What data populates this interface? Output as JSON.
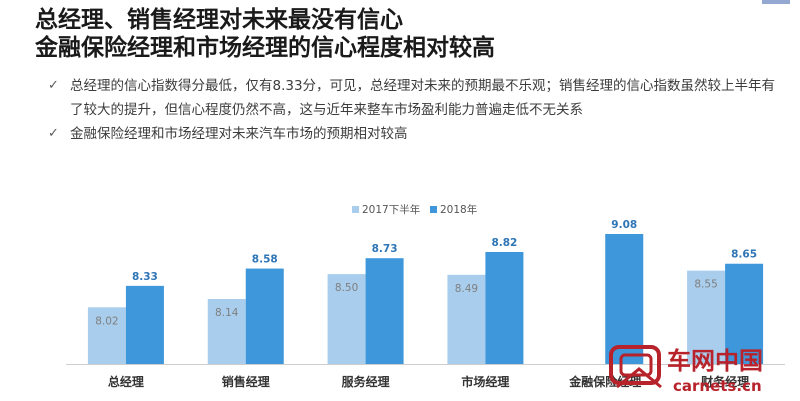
{
  "title": {
    "line1": "总经理、销售经理对未来最没有信心",
    "line2": "金融保险经理和市场经理的信心程度相对较高"
  },
  "bullets": [
    "总经理的信心指数得分最低，仅有8.33分，可见，总经理对未来的预期最不乐观；销售经理的信心指数虽然较上半年有了较大的提升，但信心程度仍然不高，这与近年来整车市场盈利能力普遍走低不无关系",
    "金融保险经理和市场经理对未来汽车市场的预期相对较高"
  ],
  "watermark": {
    "text_cn": "车网中国",
    "text_url": "carnets.cn"
  },
  "colors": {
    "series1": "#a9cdec",
    "series2": "#3d97da",
    "label_dark": "#2e75b6",
    "label_light": "#7f7f7f",
    "axis": "#cfcfcf"
  },
  "chart_data": {
    "type": "bar",
    "categories": [
      "总经理",
      "销售经理",
      "服务经理",
      "市场经理",
      "金融保险经理",
      "财务经理"
    ],
    "series": [
      {
        "name": "2017下半年",
        "values": [
          8.02,
          8.14,
          8.5,
          8.49,
          null,
          8.55
        ]
      },
      {
        "name": "2018年",
        "values": [
          8.33,
          8.58,
          8.73,
          8.82,
          9.08,
          8.65
        ]
      }
    ],
    "ylim": [
      7.2,
      9.15
    ],
    "legend": "top-center",
    "grid": false
  }
}
